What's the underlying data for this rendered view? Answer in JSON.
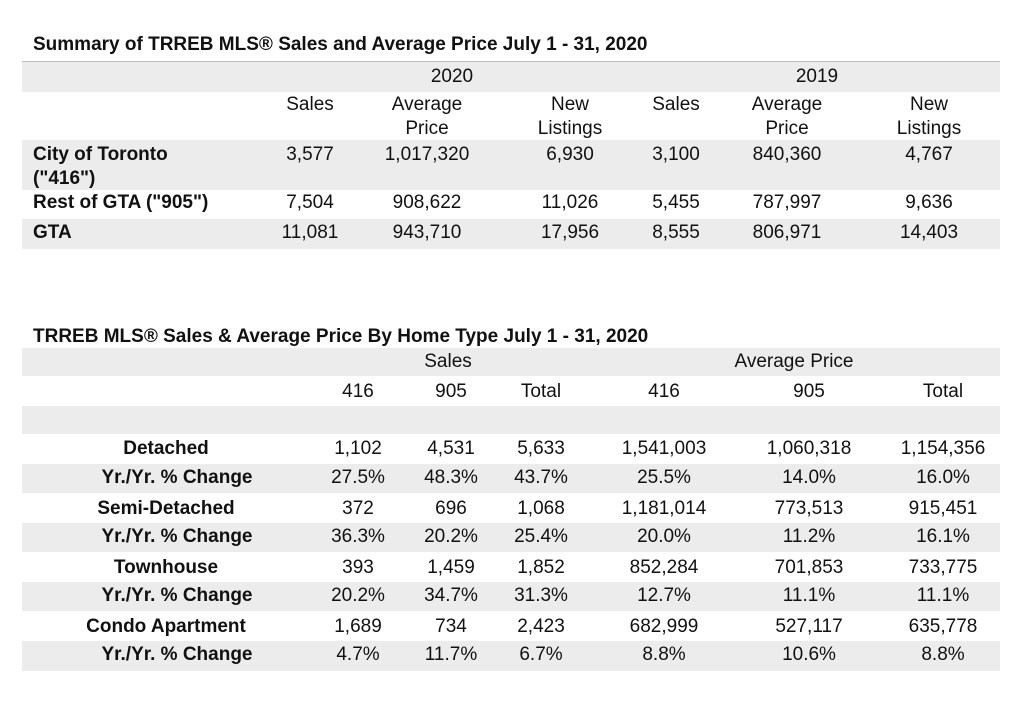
{
  "summary": {
    "title": "Summary of TRREB MLS®  Sales and Average Price July 1 - 31, 2020",
    "years": [
      "2020",
      "2019"
    ],
    "headers": [
      [
        "Sales"
      ],
      [
        "Average",
        "Price"
      ],
      [
        "New",
        "Listings"
      ],
      [
        "Sales"
      ],
      [
        "Average",
        "Price"
      ],
      [
        "New",
        "Listings"
      ]
    ],
    "rows": [
      {
        "label": [
          "City of Toronto",
          "(\"416\")"
        ],
        "values": [
          "3,577",
          "1,017,320",
          "6,930",
          "3,100",
          "840,360",
          "4,767"
        ]
      },
      {
        "label": [
          "Rest of GTA (\"905\")"
        ],
        "values": [
          "7,504",
          "908,622",
          "11,026",
          "5,455",
          "787,997",
          "9,636"
        ]
      },
      {
        "label": [
          "GTA"
        ],
        "values": [
          "11,081",
          "943,710",
          "17,956",
          "8,555",
          "806,971",
          "14,403"
        ]
      }
    ]
  },
  "by_type": {
    "title": "TRREB MLS® Sales & Average Price  By Home Type July 1 - 31, 2020",
    "group_headers": [
      "Sales",
      "Average Price"
    ],
    "columns": [
      "416",
      "905",
      "Total",
      "416",
      "905",
      "Total"
    ],
    "rows": [
      {
        "label": "Detached",
        "values": [
          "1,102",
          "4,531",
          "5,633",
          "1,541,003",
          "1,060,318",
          "1,154,356"
        ]
      },
      {
        "label": "Yr./Yr. % Change",
        "values": [
          "27.5%",
          "48.3%",
          "43.7%",
          "25.5%",
          "14.0%",
          "16.0%"
        ]
      },
      {
        "label": "Semi-Detached",
        "values": [
          "372",
          "696",
          "1,068",
          "1,181,014",
          "773,513",
          "915,451"
        ]
      },
      {
        "label": "Yr./Yr. % Change",
        "values": [
          "36.3%",
          "20.2%",
          "25.4%",
          "20.0%",
          "11.2%",
          "16.1%"
        ]
      },
      {
        "label": "Townhouse",
        "values": [
          "393",
          "1,459",
          "1,852",
          "852,284",
          "701,853",
          "733,775"
        ]
      },
      {
        "label": "Yr./Yr. % Change",
        "values": [
          "20.2%",
          "34.7%",
          "31.3%",
          "12.7%",
          "11.1%",
          "11.1%"
        ]
      },
      {
        "label": "Condo Apartment",
        "values": [
          "1,689",
          "734",
          "2,423",
          "682,999",
          "527,117",
          "635,778"
        ]
      },
      {
        "label": "Yr./Yr. % Change",
        "values": [
          "4.7%",
          "11.7%",
          "6.7%",
          "8.8%",
          "10.6%",
          "8.8%"
        ]
      }
    ]
  }
}
